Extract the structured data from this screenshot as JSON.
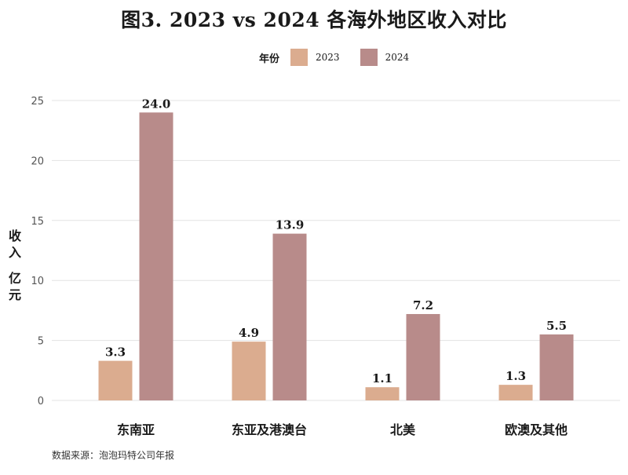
{
  "chart_data": {
    "type": "bar",
    "title": "图3. 2023 vs 2024 各海外地区收入对比",
    "ylabel": "收入（亿元）",
    "ylabel_lines": [
      "收",
      "入",
      "",
      "亿",
      "元"
    ],
    "xlabel": "",
    "legend_title": "年份",
    "legend_position": "top",
    "categories": [
      "东南亚",
      "东亚及港澳台",
      "北美",
      "欧澳及其他"
    ],
    "series": [
      {
        "name": "2023",
        "color": "#dbac8f",
        "values": [
          3.3,
          4.9,
          1.1,
          1.3
        ],
        "labels": [
          "3.3",
          "4.9",
          "1.1",
          "1.3"
        ]
      },
      {
        "name": "2024",
        "color": "#b88b8a",
        "values": [
          24.0,
          13.9,
          7.2,
          5.5
        ],
        "labels": [
          "24.0",
          "13.9",
          "7.2",
          "5.5"
        ]
      }
    ],
    "ylim": [
      0,
      25
    ],
    "yticks": [
      "0",
      "5",
      "10",
      "15",
      "20",
      "25"
    ],
    "grid": true
  },
  "source_note": "数据来源：泡泡玛特公司年报"
}
